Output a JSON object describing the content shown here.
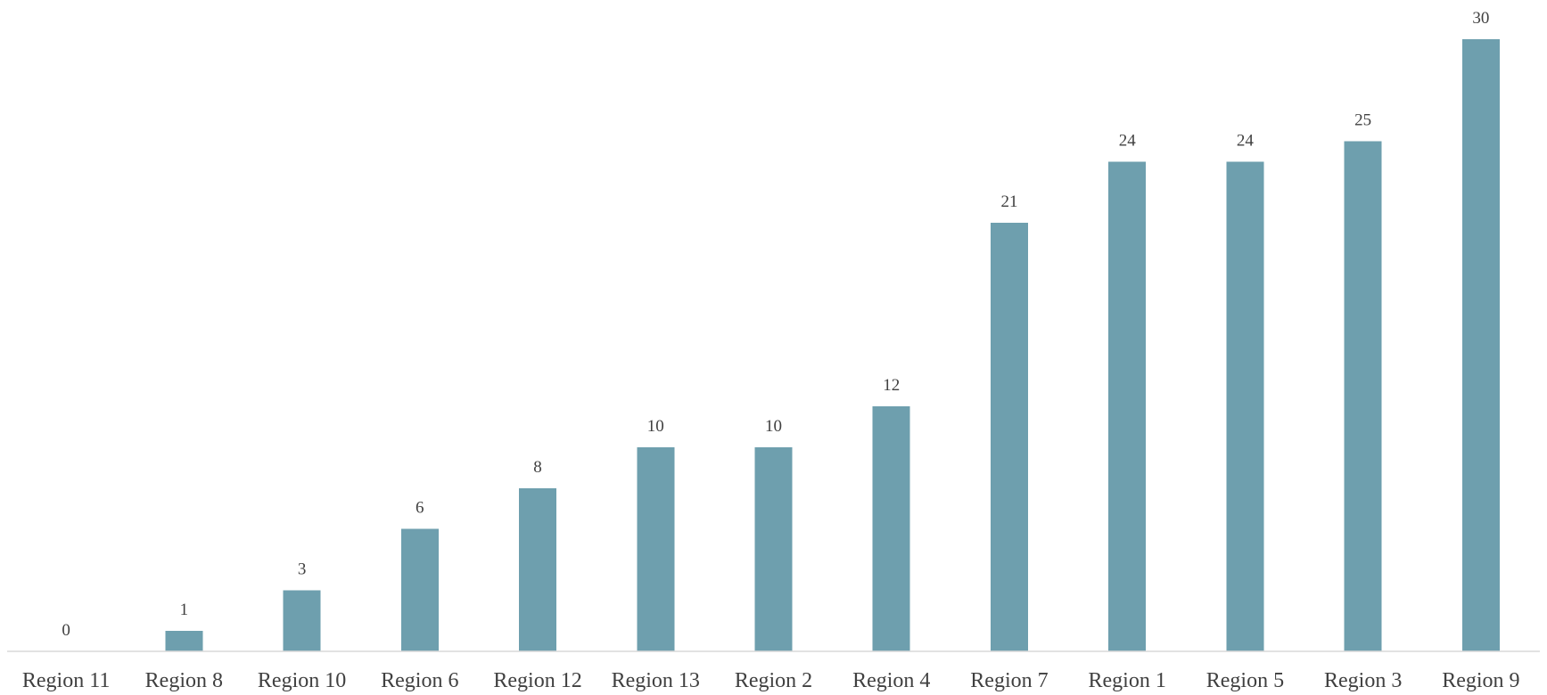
{
  "chart_data": {
    "type": "bar",
    "categories": [
      "Region 11",
      "Region 8",
      "Region 10",
      "Region 6",
      "Region 12",
      "Region 13",
      "Region 2",
      "Region 4",
      "Region 7",
      "Region 1",
      "Region 5",
      "Region 3",
      "Region 9"
    ],
    "values": [
      0,
      1,
      3,
      6,
      8,
      10,
      10,
      12,
      21,
      24,
      24,
      25,
      30
    ],
    "title": "",
    "xlabel": "",
    "ylabel": "",
    "ylim": [
      0,
      30
    ],
    "grid": false,
    "legend": "none",
    "data_labels": true,
    "bar_color": "#6e9fae",
    "axis_color": "#d9d9d9",
    "text_color": "#404040"
  }
}
